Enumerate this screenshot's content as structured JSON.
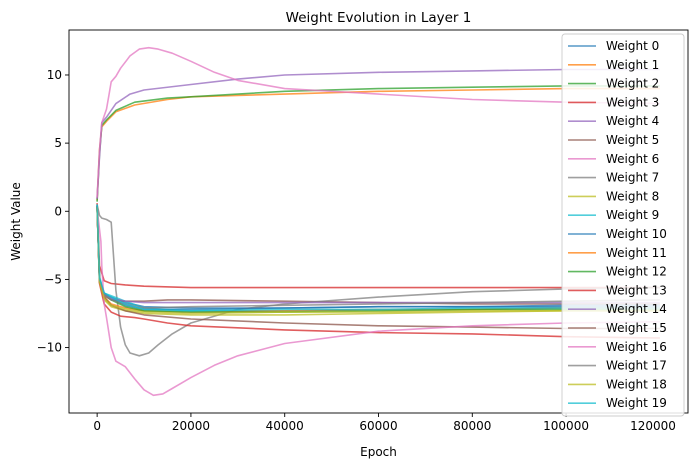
{
  "chart_data": {
    "type": "line",
    "title": "Weight Evolution in Layer 1",
    "xlabel": "Epoch",
    "ylabel": "Weight Value",
    "xlim": [
      -6000,
      126000
    ],
    "ylim": [
      -14.8,
      13.3
    ],
    "xticks": [
      0,
      20000,
      40000,
      60000,
      80000,
      100000
    ],
    "xtick_labels": [
      "0",
      "20000",
      "40000",
      "60000",
      "80000",
      "100000"
    ],
    "offscreen_tick_label": "120000",
    "yticks": [
      -10,
      -5,
      0,
      5,
      10
    ],
    "ytick_labels": [
      "−10",
      "−5",
      "0",
      "5",
      "10"
    ],
    "grid": false,
    "legend_position": "right",
    "series": [
      {
        "name": "Weight 0",
        "color": "#1f77b4",
        "x": [
          0,
          500,
          1500,
          3000,
          6000,
          10000,
          20000,
          40000,
          60000,
          80000,
          100000,
          120000
        ],
        "y": [
          0.4,
          -5.2,
          -6.1,
          -6.3,
          -6.7,
          -7.0,
          -7.1,
          -7.1,
          -7.0,
          -7.0,
          -7.0,
          -7.0
        ]
      },
      {
        "name": "Weight 1",
        "color": "#ff7f0e",
        "x": [
          0,
          500,
          1000,
          2000,
          4000,
          8000,
          15000,
          20000,
          40000,
          60000,
          80000,
          100000,
          120000
        ],
        "y": [
          0.8,
          4.5,
          6.2,
          6.6,
          7.3,
          7.8,
          8.2,
          8.4,
          8.6,
          8.8,
          8.9,
          9.0,
          9.0
        ]
      },
      {
        "name": "Weight 2",
        "color": "#2ca02c",
        "x": [
          0,
          500,
          1000,
          2000,
          4000,
          8000,
          15000,
          20000,
          40000,
          60000,
          80000,
          100000,
          120000
        ],
        "y": [
          0.7,
          4.2,
          6.3,
          6.7,
          7.4,
          8.0,
          8.3,
          8.4,
          8.8,
          9.0,
          9.1,
          9.2,
          9.2
        ]
      },
      {
        "name": "Weight 3",
        "color": "#d62728",
        "x": [
          0,
          500,
          1500,
          3000,
          6000,
          10000,
          20000,
          40000,
          60000,
          80000,
          100000,
          120000
        ],
        "y": [
          0.6,
          -4.0,
          -5.1,
          -5.3,
          -5.4,
          -5.5,
          -5.6,
          -5.6,
          -5.6,
          -5.6,
          -5.6,
          -5.6
        ]
      },
      {
        "name": "Weight 4",
        "color": "#9467bd",
        "x": [
          0,
          500,
          1000,
          2000,
          4000,
          7000,
          10000,
          20000,
          30000,
          40000,
          60000,
          80000,
          100000,
          120000
        ],
        "y": [
          0.9,
          4.0,
          6.5,
          6.9,
          7.9,
          8.6,
          8.9,
          9.3,
          9.7,
          10.0,
          10.2,
          10.3,
          10.4,
          10.4
        ]
      },
      {
        "name": "Weight 5",
        "color": "#8c564b",
        "x": [
          0,
          500,
          1500,
          3000,
          6000,
          10000,
          15000,
          20000,
          40000,
          60000,
          80000,
          100000,
          120000
        ],
        "y": [
          0.3,
          -5.0,
          -6.2,
          -6.5,
          -6.6,
          -6.6,
          -6.5,
          -6.5,
          -6.6,
          -6.7,
          -6.8,
          -6.8,
          -6.8
        ]
      },
      {
        "name": "Weight 6",
        "color": "#e377c2",
        "x": [
          0,
          500,
          1000,
          2000,
          2500,
          3000,
          4000,
          5000,
          7000,
          9000,
          11000,
          13000,
          16000,
          20000,
          25000,
          30000,
          40000,
          60000,
          80000,
          100000,
          120000
        ],
        "y": [
          1.0,
          4.5,
          6.5,
          7.5,
          8.5,
          9.5,
          9.9,
          10.5,
          11.4,
          11.9,
          12.0,
          11.9,
          11.6,
          11.0,
          10.2,
          9.6,
          9.0,
          8.6,
          8.2,
          8.0,
          7.9
        ]
      },
      {
        "name": "Weight 7",
        "color": "#7f7f7f",
        "x": [
          0,
          500,
          1000,
          2000,
          3000,
          4000,
          5000,
          6000,
          7000,
          9000,
          11000,
          13000,
          16000,
          20000,
          30000,
          40000,
          60000,
          80000,
          100000,
          120000
        ],
        "y": [
          0.5,
          -0.3,
          -0.5,
          -0.6,
          -0.8,
          -5.8,
          -8.5,
          -9.8,
          -10.4,
          -10.6,
          -10.4,
          -9.8,
          -9.0,
          -8.2,
          -7.2,
          -6.8,
          -6.3,
          -5.9,
          -5.7,
          -5.6
        ]
      },
      {
        "name": "Weight 8",
        "color": "#bcbd22",
        "x": [
          0,
          500,
          1500,
          3000,
          6000,
          10000,
          20000,
          40000,
          60000,
          80000,
          100000,
          120000
        ],
        "y": [
          0.3,
          -5.0,
          -6.5,
          -7.0,
          -7.3,
          -7.5,
          -7.6,
          -7.6,
          -7.5,
          -7.4,
          -7.3,
          -7.3
        ]
      },
      {
        "name": "Weight 9",
        "color": "#17becf",
        "x": [
          0,
          500,
          1500,
          3000,
          6000,
          10000,
          20000,
          40000,
          60000,
          80000,
          100000,
          120000
        ],
        "y": [
          0.5,
          -4.8,
          -6.0,
          -6.2,
          -6.6,
          -7.1,
          -7.3,
          -7.3,
          -7.2,
          -7.2,
          -7.1,
          -7.1
        ]
      },
      {
        "name": "Weight 10",
        "color": "#1f77b4",
        "x": [
          0,
          500,
          1500,
          3000,
          6000,
          10000,
          20000,
          40000,
          60000,
          80000,
          100000,
          120000
        ],
        "y": [
          0.4,
          -5.1,
          -6.0,
          -6.4,
          -6.9,
          -7.2,
          -7.2,
          -7.1,
          -7.0,
          -7.0,
          -6.9,
          -6.9
        ]
      },
      {
        "name": "Weight 11",
        "color": "#ff7f0e",
        "x": [
          0,
          500,
          1500,
          3000,
          6000,
          10000,
          20000,
          40000,
          60000,
          80000,
          100000,
          120000
        ],
        "y": [
          0.3,
          -5.2,
          -6.3,
          -6.8,
          -7.1,
          -7.3,
          -7.4,
          -7.3,
          -7.2,
          -7.2,
          -7.1,
          -7.1
        ]
      },
      {
        "name": "Weight 12",
        "color": "#2ca02c",
        "x": [
          0,
          500,
          1500,
          3000,
          6000,
          10000,
          20000,
          40000,
          60000,
          80000,
          100000,
          120000
        ],
        "y": [
          0.4,
          -5.0,
          -6.1,
          -6.5,
          -7.0,
          -7.3,
          -7.4,
          -7.4,
          -7.3,
          -7.2,
          -7.2,
          -7.2
        ]
      },
      {
        "name": "Weight 13",
        "color": "#d62728",
        "x": [
          0,
          500,
          1500,
          3000,
          5000,
          8000,
          10000,
          15000,
          20000,
          40000,
          60000,
          80000,
          100000,
          120000
        ],
        "y": [
          0.3,
          -5.3,
          -6.8,
          -7.4,
          -7.7,
          -7.8,
          -7.9,
          -8.2,
          -8.4,
          -8.7,
          -8.9,
          -9.0,
          -9.2,
          -9.3
        ]
      },
      {
        "name": "Weight 14",
        "color": "#9467bd",
        "x": [
          0,
          500,
          1500,
          3000,
          6000,
          10000,
          20000,
          40000,
          60000,
          80000,
          100000,
          120000
        ],
        "y": [
          0.4,
          -5.1,
          -6.1,
          -6.4,
          -6.6,
          -6.7,
          -6.7,
          -6.7,
          -6.7,
          -6.7,
          -6.7,
          -6.7
        ]
      },
      {
        "name": "Weight 15",
        "color": "#8c564b",
        "x": [
          0,
          500,
          1500,
          3000,
          6000,
          10000,
          20000,
          40000,
          60000,
          80000,
          100000,
          120000
        ],
        "y": [
          0.3,
          -5.0,
          -6.3,
          -6.9,
          -7.3,
          -7.6,
          -7.9,
          -8.2,
          -8.4,
          -8.5,
          -8.6,
          -8.6
        ]
      },
      {
        "name": "Weight 16",
        "color": "#e377c2",
        "x": [
          0,
          800,
          1000,
          1500,
          2000,
          3000,
          4000,
          6000,
          8000,
          10000,
          12000,
          14000,
          16000,
          20000,
          25000,
          30000,
          40000,
          60000,
          80000,
          100000,
          120000
        ],
        "y": [
          0.2,
          -2.2,
          -4.0,
          -6.8,
          -7.8,
          -10.0,
          -11.0,
          -11.4,
          -12.3,
          -13.1,
          -13.5,
          -13.4,
          -13.0,
          -12.2,
          -11.3,
          -10.6,
          -9.7,
          -8.8,
          -8.4,
          -8.2,
          -8.1
        ]
      },
      {
        "name": "Weight 17",
        "color": "#7f7f7f",
        "x": [
          0,
          500,
          1500,
          3000,
          6000,
          10000,
          20000,
          40000,
          60000,
          80000,
          100000,
          120000
        ],
        "y": [
          0.4,
          -5.1,
          -6.1,
          -6.5,
          -6.8,
          -7.1,
          -7.0,
          -6.9,
          -6.8,
          -6.7,
          -6.6,
          -6.5
        ]
      },
      {
        "name": "Weight 18",
        "color": "#bcbd22",
        "x": [
          0,
          500,
          1500,
          3000,
          6000,
          10000,
          20000,
          40000,
          60000,
          80000,
          100000,
          120000
        ],
        "y": [
          0.3,
          -5.2,
          -6.4,
          -6.9,
          -7.2,
          -7.4,
          -7.5,
          -7.4,
          -7.4,
          -7.3,
          -7.3,
          -7.3
        ]
      },
      {
        "name": "Weight 19",
        "color": "#17becf",
        "x": [
          0,
          500,
          1500,
          3000,
          6000,
          10000,
          20000,
          40000,
          60000,
          80000,
          100000,
          120000
        ],
        "y": [
          0.5,
          -4.9,
          -6.0,
          -6.3,
          -6.8,
          -7.2,
          -7.3,
          -7.2,
          -7.2,
          -7.1,
          -7.1,
          -7.1
        ]
      }
    ]
  }
}
